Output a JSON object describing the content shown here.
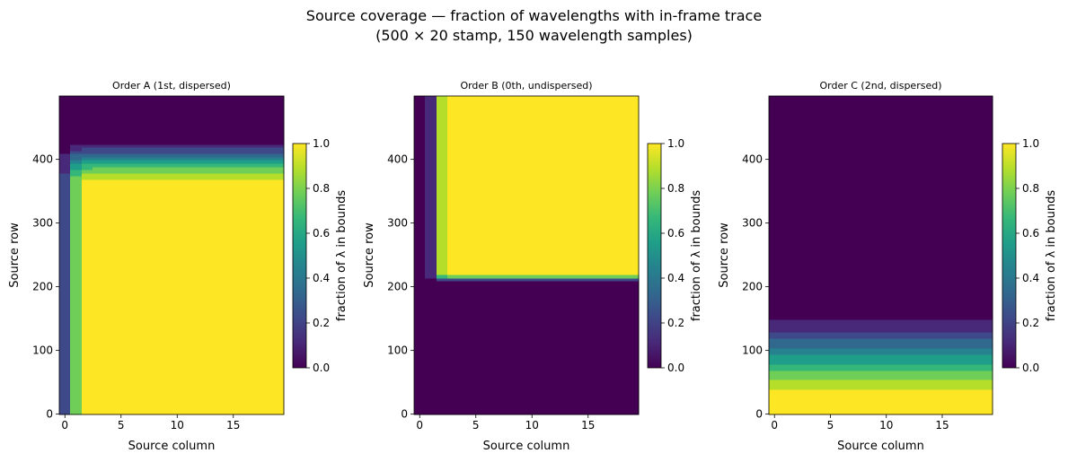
{
  "title": "Source coverage — fraction of wavelengths with in-frame trace",
  "subtitle": "(500 × 20 stamp, 150 wavelength samples)",
  "colormap": [
    "#440154",
    "#482878",
    "#3e4989",
    "#31688e",
    "#26828e",
    "#1f9e89",
    "#35b779",
    "#6ece58",
    "#b5de2b",
    "#fde725"
  ],
  "chart_data": [
    {
      "type": "heatmap",
      "title": "Order A (1st, dispersed)",
      "xlabel": "Source column",
      "ylabel": "Source row",
      "xlim": [
        -0.5,
        19.5
      ],
      "ylim": [
        -0.5,
        499.5
      ],
      "xticks": [
        0,
        5,
        10,
        15
      ],
      "yticks": [
        0,
        100,
        200,
        300,
        400
      ],
      "colorbar": {
        "label": "fraction of λ in bounds",
        "range": [
          0,
          1
        ],
        "ticks": [
          "0.0",
          "0.2",
          "0.4",
          "0.6",
          "0.8",
          "1.0"
        ]
      },
      "model": {
        "col_edge": 0.5,
        "col_width": 0.35,
        "row_full_until": 360,
        "row_zero_from": 438
      }
    },
    {
      "type": "heatmap",
      "title": "Order B (0th, undispersed)",
      "xlabel": "Source column",
      "ylabel": "Source row",
      "xlim": [
        -0.5,
        19.5
      ],
      "ylim": [
        -0.5,
        499.5
      ],
      "xticks": [
        0,
        5,
        10,
        15
      ],
      "yticks": [
        0,
        100,
        200,
        300,
        400
      ],
      "colorbar": {
        "label": "fraction of λ in bounds",
        "range": [
          0,
          1
        ],
        "ticks": [
          "0.0",
          "0.2",
          "0.4",
          "0.6",
          "0.8",
          "1.0"
        ]
      },
      "model": {
        "col_edge": 1.5,
        "col_width": 0.25,
        "row_edge": 214,
        "row_width": 2
      }
    },
    {
      "type": "heatmap",
      "title": "Order C (2nd, dispersed)",
      "xlabel": "Source column",
      "ylabel": "Source row",
      "xlim": [
        -0.5,
        19.5
      ],
      "ylim": [
        -0.5,
        499.5
      ],
      "xticks": [
        0,
        5,
        10,
        15
      ],
      "yticks": [
        0,
        100,
        200,
        300,
        400
      ],
      "colorbar": {
        "label": "fraction of λ in bounds",
        "range": [
          0,
          1
        ],
        "ticks": [
          "0.0",
          "0.2",
          "0.4",
          "0.6",
          "0.8",
          "1.0"
        ]
      },
      "model": {
        "row_full_until": 15,
        "row_zero_from": 172
      }
    }
  ]
}
